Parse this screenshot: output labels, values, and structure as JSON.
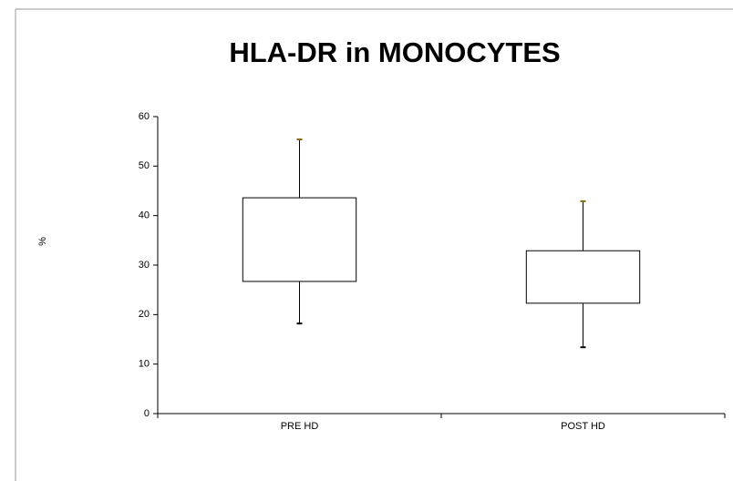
{
  "chart_data": {
    "type": "box",
    "title": "HLA-DR in MONOCYTES",
    "y_label": "%",
    "categories": [
      "PRE HD",
      "POST HD"
    ],
    "min": [
      18.2,
      13.4
    ],
    "q1": [
      26.7,
      22.3
    ],
    "q3": [
      43.6,
      32.9
    ],
    "max": [
      55.4,
      42.9
    ],
    "ylim": [
      0,
      60
    ],
    "yticks": [
      0,
      10,
      20,
      30,
      40,
      50,
      60
    ],
    "grid": false
  }
}
